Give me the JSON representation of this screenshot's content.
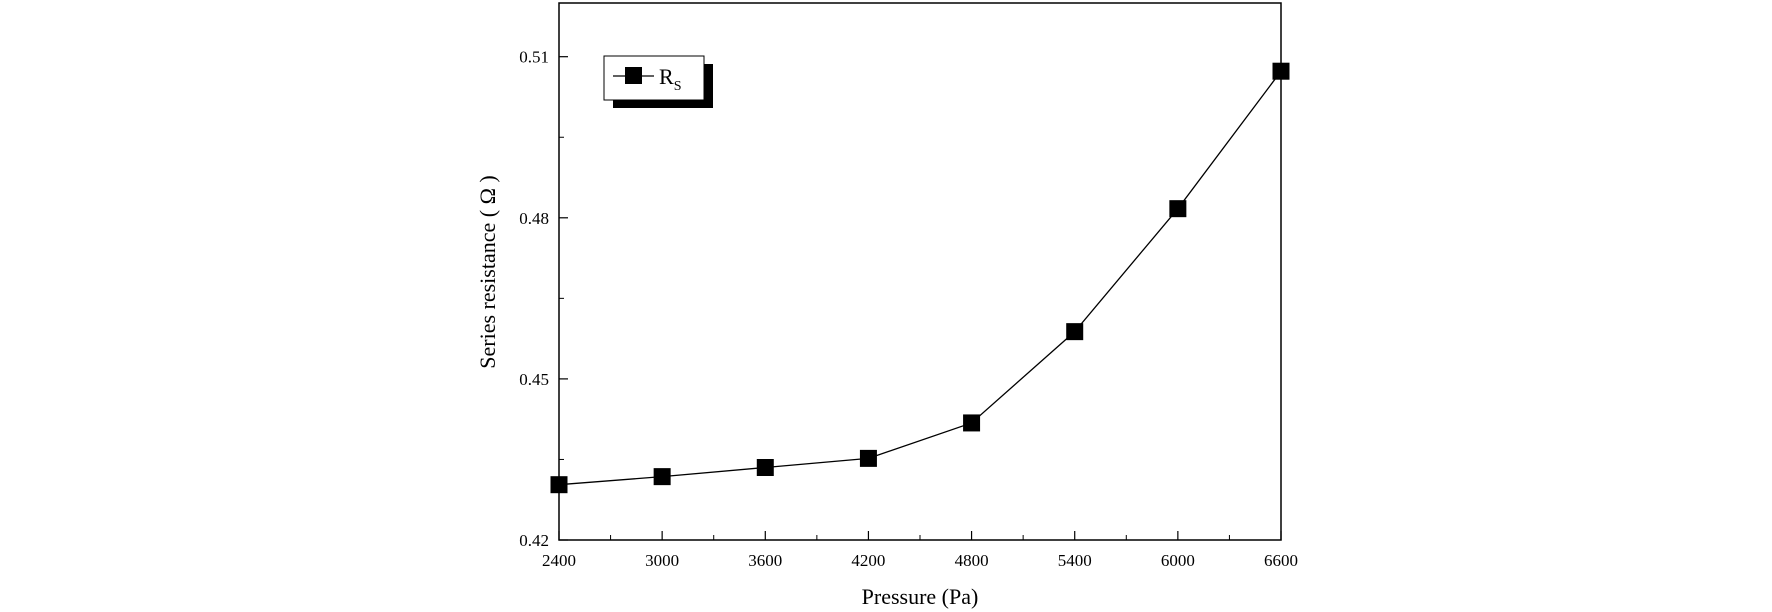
{
  "chart_data": {
    "type": "line",
    "title": "",
    "xlabel": "Pressure (Pa)",
    "ylabel": "Series resistance ( Ω )",
    "xlim": [
      2400,
      6600
    ],
    "ylim": [
      0.42,
      0.52
    ],
    "x_ticks": [
      2400,
      3000,
      3600,
      4200,
      4800,
      5400,
      6000,
      6600
    ],
    "x_tick_labels": [
      "2400",
      "3000",
      "3600",
      "4200",
      "4800",
      "5400",
      "6000",
      "6600"
    ],
    "y_ticks": [
      0.42,
      0.45,
      0.48,
      0.51
    ],
    "y_tick_labels": [
      "0.42",
      "0.45",
      "0.48",
      "0.51"
    ],
    "grid": false,
    "legend_position": "top-left",
    "series": [
      {
        "name": "R",
        "name_subscript": "S",
        "marker": "square",
        "color": "#000000",
        "x": [
          2400,
          3000,
          3600,
          4200,
          4800,
          5400,
          6000,
          6600
        ],
        "values": [
          0.4303,
          0.4318,
          0.4335,
          0.4352,
          0.4418,
          0.4588,
          0.4817,
          0.5073
        ]
      }
    ]
  }
}
